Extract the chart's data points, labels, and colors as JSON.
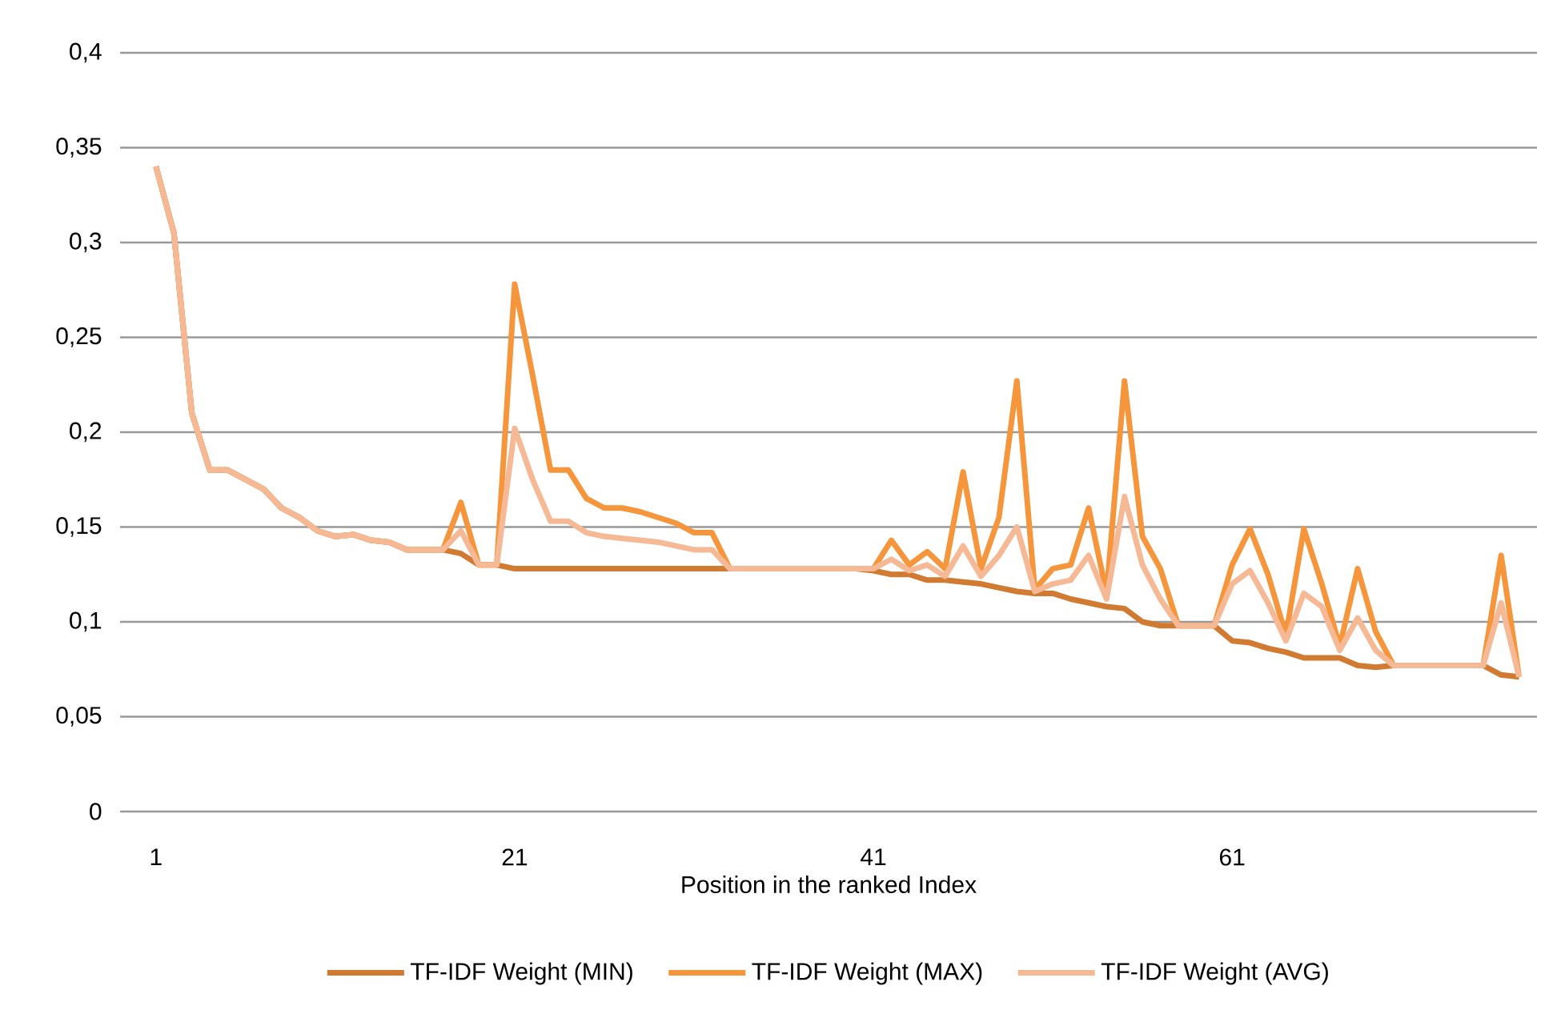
{
  "chart_data": {
    "type": "line",
    "xlabel": "Position in the ranked Index",
    "categories": [
      "1",
      null,
      null,
      null,
      null,
      null,
      null,
      null,
      null,
      null,
      null,
      null,
      null,
      null,
      null,
      null,
      null,
      null,
      null,
      null,
      "21",
      null,
      null,
      null,
      null,
      null,
      null,
      null,
      null,
      null,
      null,
      null,
      null,
      null,
      null,
      null,
      null,
      null,
      null,
      null,
      "41",
      null,
      null,
      null,
      null,
      null,
      null,
      null,
      null,
      null,
      null,
      null,
      null,
      null,
      null,
      null,
      null,
      null,
      null,
      null,
      "61",
      null,
      null,
      null,
      null,
      null,
      null,
      null,
      null,
      null,
      null,
      null,
      null,
      null,
      null,
      null,
      null
    ],
    "series": [
      {
        "name": "TF-IDF Weight (MIN)",
        "color": "#d07a32",
        "values": [
          0.34,
          0.305,
          0.21,
          0.18,
          0.18,
          0.175,
          0.17,
          0.16,
          0.155,
          0.148,
          0.145,
          0.146,
          0.143,
          0.142,
          0.138,
          0.138,
          0.138,
          0.136,
          0.13,
          0.13,
          0.128,
          0.128,
          0.128,
          0.128,
          0.128,
          0.128,
          0.128,
          0.128,
          0.128,
          0.128,
          0.128,
          0.128,
          0.128,
          0.128,
          0.128,
          0.128,
          0.128,
          0.128,
          0.128,
          0.128,
          0.127,
          0.125,
          0.125,
          0.122,
          0.122,
          0.121,
          0.12,
          0.118,
          0.116,
          0.115,
          0.115,
          0.112,
          0.11,
          0.108,
          0.107,
          0.1,
          0.098,
          0.098,
          0.098,
          0.098,
          0.09,
          0.089,
          0.086,
          0.084,
          0.081,
          0.081,
          0.081,
          0.077,
          0.076,
          0.077,
          0.077,
          0.077,
          0.077,
          0.077,
          0.077,
          0.072,
          0.071
        ]
      },
      {
        "name": "TF-IDF Weight (MAX)",
        "color": "#f5963c",
        "values": [
          0.34,
          0.305,
          0.21,
          0.18,
          0.18,
          0.175,
          0.17,
          0.16,
          0.155,
          0.148,
          0.145,
          0.146,
          0.143,
          0.142,
          0.138,
          0.138,
          0.138,
          0.163,
          0.13,
          0.13,
          0.278,
          0.23,
          0.18,
          0.18,
          0.165,
          0.16,
          0.16,
          0.158,
          0.155,
          0.152,
          0.147,
          0.147,
          0.128,
          0.128,
          0.128,
          0.128,
          0.128,
          0.128,
          0.128,
          0.128,
          0.128,
          0.143,
          0.13,
          0.137,
          0.128,
          0.179,
          0.128,
          0.155,
          0.227,
          0.117,
          0.128,
          0.13,
          0.16,
          0.115,
          0.227,
          0.145,
          0.128,
          0.098,
          0.098,
          0.098,
          0.13,
          0.149,
          0.125,
          0.093,
          0.149,
          0.12,
          0.087,
          0.128,
          0.095,
          0.077,
          0.077,
          0.077,
          0.077,
          0.077,
          0.077,
          0.135,
          0.071
        ]
      },
      {
        "name": "TF-IDF Weight (AVG)",
        "color": "#f5b995",
        "values": [
          0.34,
          0.305,
          0.21,
          0.18,
          0.18,
          0.175,
          0.17,
          0.16,
          0.155,
          0.148,
          0.145,
          0.146,
          0.143,
          0.142,
          0.138,
          0.138,
          0.138,
          0.148,
          0.13,
          0.13,
          0.202,
          0.175,
          0.153,
          0.153,
          0.147,
          0.145,
          0.144,
          0.143,
          0.142,
          0.14,
          0.138,
          0.138,
          0.128,
          0.128,
          0.128,
          0.128,
          0.128,
          0.128,
          0.128,
          0.128,
          0.128,
          0.133,
          0.127,
          0.13,
          0.124,
          0.14,
          0.124,
          0.135,
          0.15,
          0.116,
          0.12,
          0.122,
          0.135,
          0.112,
          0.166,
          0.13,
          0.112,
          0.098,
          0.098,
          0.098,
          0.12,
          0.127,
          0.11,
          0.09,
          0.115,
          0.108,
          0.085,
          0.102,
          0.085,
          0.077,
          0.077,
          0.077,
          0.077,
          0.077,
          0.077,
          0.11,
          0.071
        ]
      }
    ],
    "ylim": [
      0,
      0.4
    ],
    "yticks": [
      {
        "value": 0,
        "label": "0"
      },
      {
        "value": 0.05,
        "label": "0,05"
      },
      {
        "value": 0.1,
        "label": "0,1"
      },
      {
        "value": 0.15,
        "label": "0,15"
      },
      {
        "value": 0.2,
        "label": "0,2"
      },
      {
        "value": 0.25,
        "label": "0,25"
      },
      {
        "value": 0.3,
        "label": "0,3"
      },
      {
        "value": 0.35,
        "label": "0,35"
      },
      {
        "value": 0.4,
        "label": "0,4"
      }
    ],
    "grid": "y",
    "legend": "bottom",
    "line_style": "solid"
  }
}
